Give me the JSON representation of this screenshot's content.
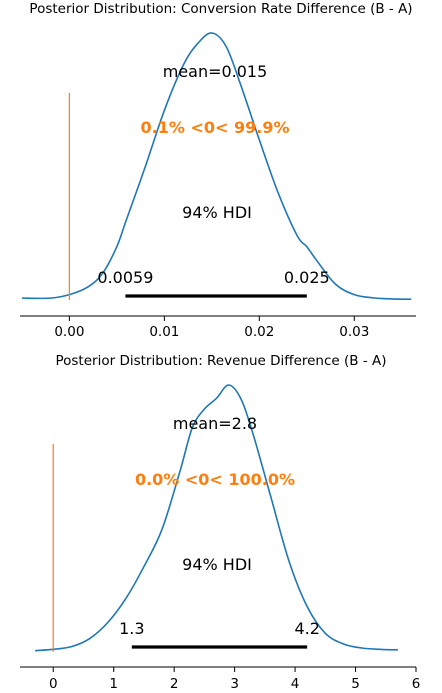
{
  "chart_data": [
    {
      "type": "area",
      "title": "Posterior Distribution: Conversion Rate Difference (B - A)",
      "xlim": [
        -0.0052,
        0.0365
      ],
      "xticks": [
        0.0,
        0.01,
        0.02,
        0.03
      ],
      "xtick_labels": [
        "0.00",
        "0.01",
        "0.02",
        "0.03"
      ],
      "mean_label": "mean=0.015",
      "ref_val": 0,
      "ref_label": "0.1% <0< 99.9%",
      "hdi_label": "94% HDI",
      "hdi": [
        0.0059,
        0.025
      ],
      "hdi_low_label": "0.0059",
      "hdi_high_label": "0.025",
      "density": {
        "x": [
          -0.005,
          -0.002,
          0.0,
          0.002,
          0.0035,
          0.005,
          0.006,
          0.008,
          0.01,
          0.012,
          0.0135,
          0.015,
          0.0165,
          0.018,
          0.02,
          0.022,
          0.024,
          0.025,
          0.026,
          0.028,
          0.03,
          0.032,
          0.034,
          0.036
        ],
        "y": [
          0.007,
          0.007,
          0.02,
          0.05,
          0.1,
          0.2,
          0.3,
          0.5,
          0.71,
          0.88,
          0.96,
          1.0,
          0.95,
          0.81,
          0.6,
          0.4,
          0.24,
          0.2,
          0.15,
          0.06,
          0.02,
          0.008,
          0.004,
          0.003
        ]
      },
      "colors": {
        "curve": "#1f77b4",
        "ref": "#ff7f0e",
        "hdi": "#000000"
      }
    },
    {
      "type": "area",
      "title": "Posterior Distribution: Revenue Difference (B - A)",
      "xlim": [
        -0.55,
        6.0
      ],
      "xticks": [
        0,
        1,
        2,
        3,
        4,
        5,
        6
      ],
      "xtick_labels": [
        "0",
        "1",
        "2",
        "3",
        "4",
        "5",
        "6"
      ],
      "mean_label": "mean=2.8",
      "ref_val": 0,
      "ref_label": "0.0% <0< 100.0%",
      "hdi_label": "94% HDI",
      "hdi": [
        1.3,
        4.2
      ],
      "hdi_low_label": "1.3",
      "hdi_high_label": "4.2",
      "density": {
        "x": [
          -0.3,
          0.0,
          0.3,
          0.6,
          0.9,
          1.2,
          1.5,
          1.8,
          2.1,
          2.3,
          2.5,
          2.7,
          2.9,
          3.1,
          3.3,
          3.6,
          3.9,
          4.2,
          4.5,
          4.8,
          5.1,
          5.4,
          5.7
        ],
        "y": [
          0.005,
          0.01,
          0.02,
          0.05,
          0.11,
          0.2,
          0.32,
          0.46,
          0.68,
          0.84,
          0.91,
          0.95,
          1.0,
          0.95,
          0.82,
          0.58,
          0.34,
          0.17,
          0.07,
          0.03,
          0.015,
          0.01,
          0.008
        ]
      },
      "colors": {
        "curve": "#1f77b4",
        "ref": "#ff7f0e",
        "hdi": "#000000"
      }
    }
  ]
}
